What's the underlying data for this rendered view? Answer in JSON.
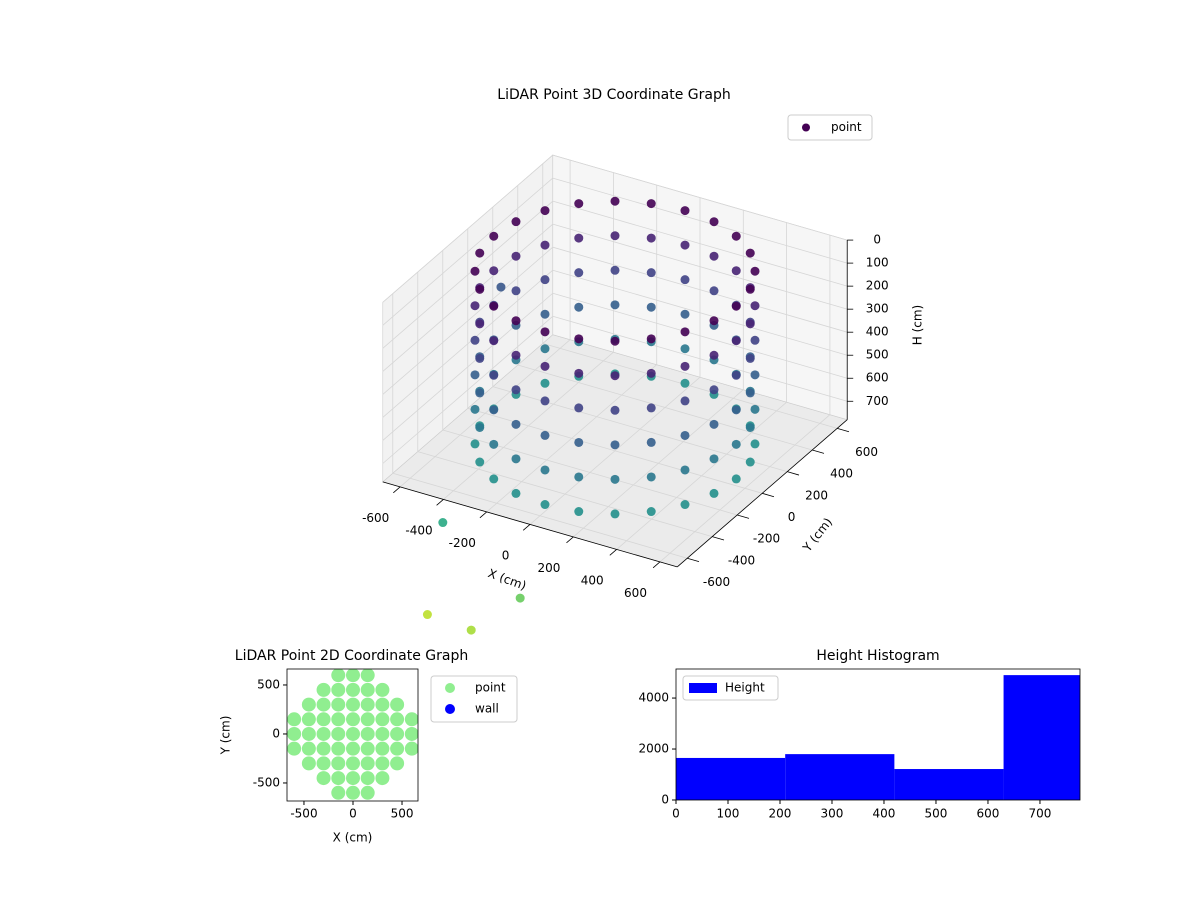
{
  "chart_data": [
    {
      "type": "scatter3d",
      "title": "LiDAR Point 3D Coordinate Graph",
      "xlabel": "X (cm)",
      "ylabel": "Y (cm)",
      "zlabel": "H (cm)",
      "xlim": [
        -680,
        680
      ],
      "ylim": [
        -680,
        680
      ],
      "zlim": [
        780,
        0
      ],
      "xticks": [
        -600,
        -400,
        -200,
        0,
        200,
        400,
        600
      ],
      "yticks": [
        -600,
        -400,
        -200,
        0,
        200,
        400,
        600
      ],
      "zticks": [
        0,
        100,
        200,
        300,
        400,
        500,
        600,
        700
      ],
      "colormap": "viridis",
      "clim": [
        0,
        1500
      ],
      "legend": "upper right",
      "grid": true,
      "series": [
        {
          "name": "point",
          "x": [
            560,
            541,
            485,
            396,
            280,
            145,
            0,
            -145,
            -280,
            -396,
            -485,
            -541,
            -560,
            -541,
            -485,
            -396,
            -280,
            -145,
            0,
            145,
            280,
            396,
            485,
            541,
            560,
            541,
            485,
            396,
            280,
            145,
            0,
            -145,
            -280,
            -396,
            -485,
            -541,
            -560,
            -541,
            -485,
            -396,
            -280,
            -145,
            0,
            145,
            280,
            396,
            485,
            541,
            560,
            541,
            485,
            396,
            280,
            145,
            0,
            -145,
            -280,
            -396,
            -485,
            -541,
            -560,
            -541,
            -485,
            -396,
            -280,
            -145,
            0,
            145,
            280,
            396,
            485,
            541,
            560,
            541,
            485,
            396,
            280,
            145,
            0,
            -145,
            -280,
            -396,
            -485,
            -541,
            -560,
            -541,
            -485,
            -396,
            -280,
            -145,
            0,
            145,
            280,
            396,
            485,
            541,
            560,
            541,
            485,
            396,
            280,
            145,
            0,
            -145,
            -280,
            -396,
            -485,
            -541,
            -560,
            -541,
            -485,
            -396,
            -280,
            -145,
            0,
            145,
            280,
            396,
            485,
            541,
            560,
            541,
            485,
            396,
            280,
            145,
            0,
            -145,
            -280,
            -396,
            -485,
            -541,
            -560,
            -541,
            -485,
            -396,
            -280,
            -145,
            0,
            145,
            280,
            396,
            485,
            541,
            -700,
            -420,
            -260,
            -80,
            -520
          ],
          "y": [
            0,
            145,
            280,
            396,
            485,
            541,
            560,
            541,
            485,
            396,
            280,
            145,
            0,
            -145,
            -280,
            -396,
            -485,
            -541,
            -560,
            -541,
            -485,
            -396,
            -280,
            -145,
            0,
            145,
            280,
            396,
            485,
            541,
            560,
            541,
            485,
            396,
            280,
            145,
            0,
            -145,
            -280,
            -396,
            -485,
            -541,
            -560,
            -541,
            -485,
            -396,
            -280,
            -145,
            0,
            145,
            280,
            396,
            485,
            541,
            560,
            541,
            485,
            396,
            280,
            145,
            0,
            -145,
            -280,
            -396,
            -485,
            -541,
            -560,
            -541,
            -485,
            -396,
            -280,
            -145,
            0,
            145,
            280,
            396,
            485,
            541,
            560,
            541,
            485,
            396,
            280,
            145,
            0,
            -145,
            -280,
            -396,
            -485,
            -541,
            -560,
            -541,
            -485,
            -396,
            -280,
            -145,
            0,
            145,
            280,
            396,
            485,
            541,
            560,
            541,
            485,
            396,
            280,
            145,
            0,
            -145,
            -280,
            -396,
            -485,
            -541,
            -560,
            -541,
            -485,
            -396,
            -280,
            -145,
            0,
            145,
            280,
            396,
            485,
            541,
            560,
            541,
            485,
            396,
            280,
            145,
            0,
            -145,
            -280,
            -396,
            -485,
            -541,
            -560,
            -541,
            -485,
            -396,
            -280,
            -145,
            300,
            -650,
            -700,
            -620,
            -600
          ],
          "z": [
            0,
            0,
            0,
            0,
            0,
            0,
            0,
            0,
            0,
            0,
            0,
            0,
            0,
            0,
            0,
            0,
            0,
            0,
            0,
            0,
            0,
            0,
            0,
            0,
            150,
            150,
            150,
            150,
            150,
            150,
            150,
            150,
            150,
            150,
            150,
            150,
            150,
            150,
            150,
            150,
            150,
            150,
            150,
            150,
            150,
            150,
            150,
            150,
            300,
            300,
            300,
            300,
            300,
            300,
            300,
            300,
            300,
            300,
            300,
            300,
            300,
            300,
            300,
            300,
            300,
            300,
            300,
            300,
            300,
            300,
            300,
            300,
            450,
            450,
            450,
            450,
            450,
            450,
            450,
            450,
            450,
            450,
            450,
            450,
            450,
            450,
            450,
            450,
            450,
            450,
            450,
            450,
            450,
            450,
            450,
            450,
            600,
            600,
            600,
            600,
            600,
            600,
            600,
            600,
            600,
            600,
            600,
            600,
            600,
            600,
            600,
            600,
            600,
            600,
            600,
            600,
            600,
            600,
            600,
            600,
            750,
            750,
            750,
            750,
            750,
            750,
            750,
            750,
            750,
            750,
            750,
            750,
            750,
            750,
            750,
            750,
            750,
            750,
            750,
            750,
            750,
            750,
            750,
            750,
            400,
            900,
            1300,
            1150,
            1350
          ]
        }
      ]
    },
    {
      "type": "scatter",
      "title": "LiDAR Point 2D Coordinate Graph",
      "xlabel": "X (cm)",
      "ylabel": "Y (cm)",
      "xlim": [
        -673,
        663
      ],
      "ylim": [
        -684,
        663
      ],
      "xticks": [
        -500,
        0,
        500
      ],
      "yticks": [
        -500,
        0,
        500
      ],
      "legend": "outside upper right",
      "series": [
        {
          "name": "point",
          "color": "#90ee90",
          "x": [
            -600,
            -600,
            -600,
            -450,
            -450,
            -450,
            -450,
            -450,
            -300,
            -300,
            -300,
            -300,
            -300,
            -300,
            -300,
            -150,
            -150,
            -150,
            -150,
            -150,
            -150,
            -150,
            -150,
            -150,
            0,
            0,
            0,
            0,
            0,
            0,
            0,
            0,
            0,
            150,
            150,
            150,
            150,
            150,
            150,
            150,
            150,
            150,
            300,
            300,
            300,
            300,
            300,
            300,
            300,
            450,
            450,
            450,
            450,
            450,
            600,
            600,
            600
          ],
          "y": [
            -150,
            0,
            150,
            -300,
            -150,
            0,
            150,
            300,
            -450,
            -300,
            -150,
            0,
            150,
            300,
            450,
            -600,
            -450,
            -300,
            -150,
            0,
            150,
            300,
            450,
            600,
            -600,
            -450,
            -300,
            -150,
            0,
            150,
            300,
            450,
            600,
            -600,
            -450,
            -300,
            -150,
            0,
            150,
            300,
            450,
            600,
            -450,
            -300,
            -150,
            0,
            150,
            300,
            450,
            -300,
            -150,
            0,
            150,
            300,
            -150,
            0,
            150
          ]
        },
        {
          "name": "wall",
          "color": "#0000ff",
          "x": [],
          "y": []
        }
      ]
    },
    {
      "type": "histogram",
      "title": "Height Histogram",
      "bins": [
        0,
        210,
        420,
        630,
        777
      ],
      "series": [
        {
          "name": "Height",
          "color": "#0000ff",
          "values": [
            1650,
            1800,
            1215,
            4900
          ]
        }
      ],
      "xlim": [
        0,
        777
      ],
      "ylim": [
        0,
        5140
      ],
      "xticks": [
        0,
        100,
        200,
        300,
        400,
        500,
        600,
        700
      ],
      "yticks": [
        0,
        2000,
        4000
      ],
      "legend": "upper left"
    }
  ]
}
